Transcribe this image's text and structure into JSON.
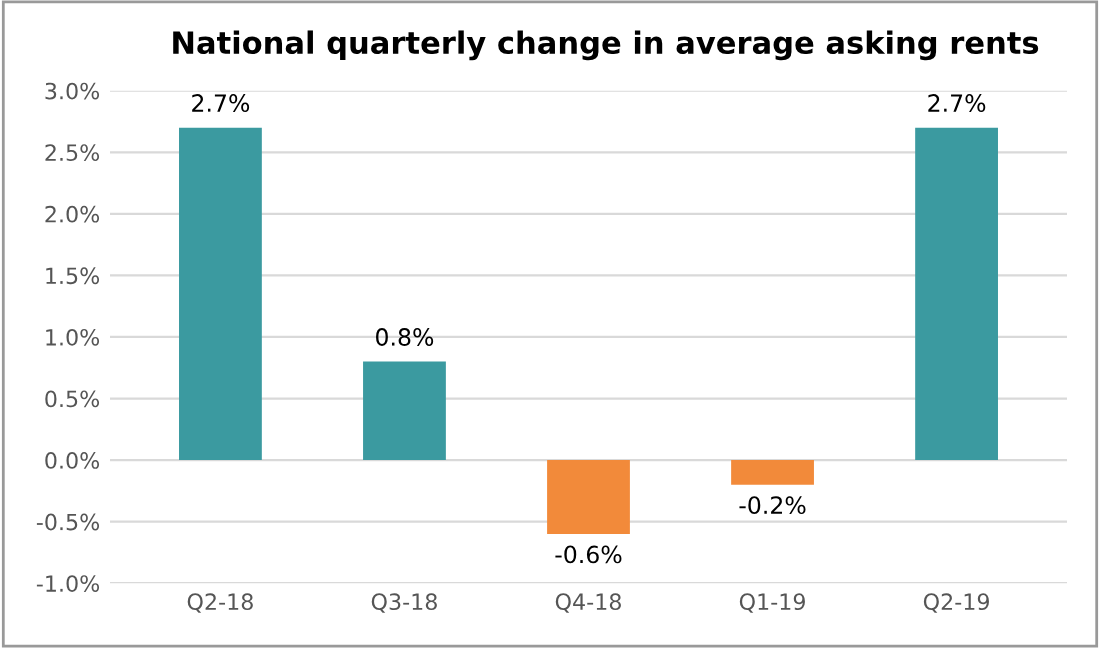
{
  "chart_data": {
    "type": "bar",
    "title": "National quarterly change in average asking rents",
    "categories": [
      "Q2-18",
      "Q3-18",
      "Q4-18",
      "Q1-19",
      "Q2-19"
    ],
    "values": [
      2.7,
      0.8,
      -0.6,
      -0.2,
      2.7
    ],
    "colors": [
      "#3b9aa0",
      "#3b9aa0",
      "#f28a3a",
      "#f28a3a",
      "#3b9aa0"
    ],
    "value_labels": [
      "2.7%",
      "0.8%",
      "-0.6%",
      "-0.2%",
      "2.7%"
    ],
    "ylim": [
      -1.0,
      3.0
    ],
    "yticks": [
      {
        "value": -1.0,
        "label": "-1.0%"
      },
      {
        "value": -0.5,
        "label": "-0.5%"
      },
      {
        "value": 0.0,
        "label": "0.0%"
      },
      {
        "value": 0.5,
        "label": "0.5%"
      },
      {
        "value": 1.0,
        "label": "1.0%"
      },
      {
        "value": 1.5,
        "label": "1.5%"
      },
      {
        "value": 2.0,
        "label": "2.0%"
      },
      {
        "value": 2.5,
        "label": "2.5%"
      },
      {
        "value": 3.0,
        "label": "3.0%"
      }
    ],
    "grid": "y"
  }
}
